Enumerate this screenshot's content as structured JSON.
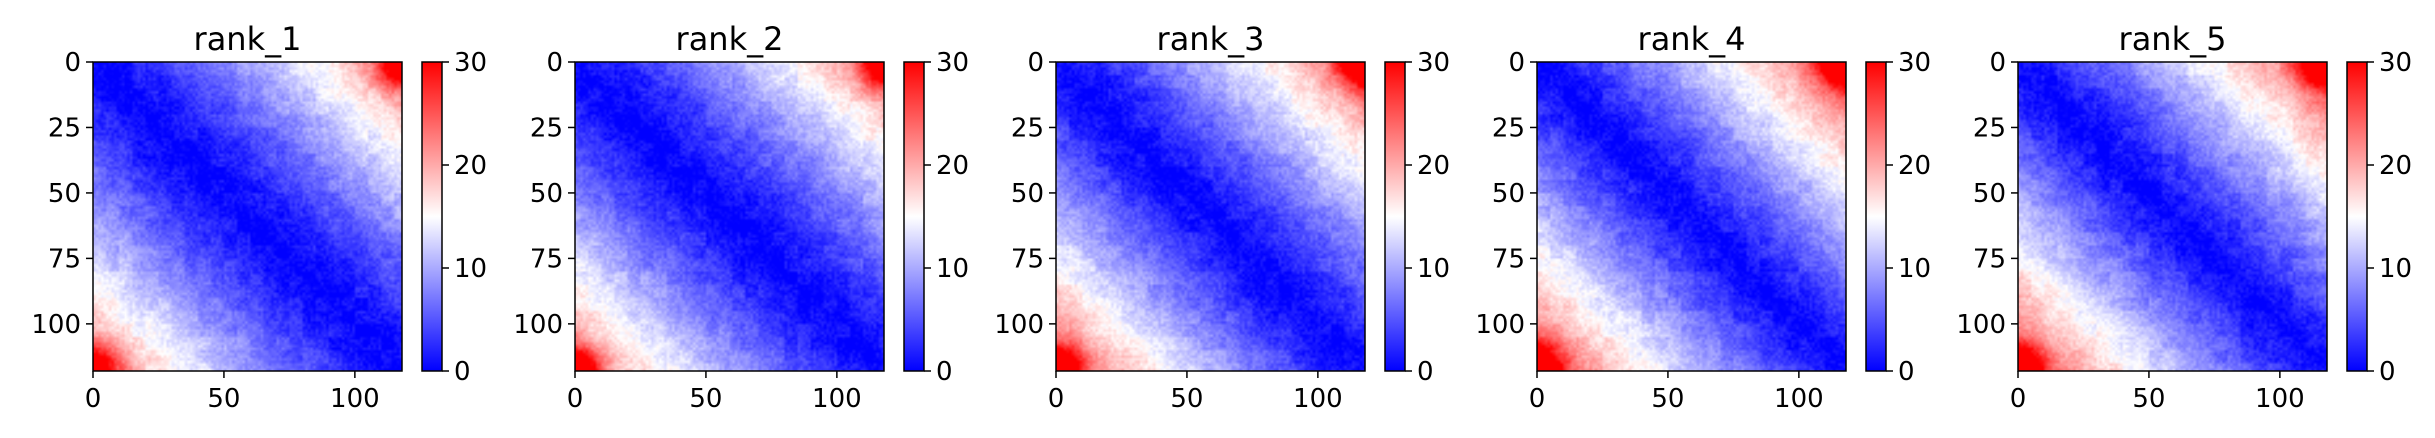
{
  "figure": {
    "colormap": "bwr",
    "color_low": "#0000ff",
    "color_mid": "#ffffff",
    "color_high": "#ff0000"
  },
  "chart_data": [
    {
      "type": "heatmap",
      "title": "rank_1",
      "n": 118,
      "xticks": [
        0,
        50,
        100
      ],
      "yticks": [
        0,
        25,
        50,
        75,
        100
      ],
      "xlim": [
        0,
        118
      ],
      "ylim": [
        118,
        0
      ],
      "colorbar": {
        "range": [
          0,
          30
        ],
        "ticks": [
          0,
          10,
          20,
          30
        ]
      },
      "pattern": {
        "diag_value": 0,
        "growth": 23,
        "power": 1.25,
        "corner_boost": 15
      }
    },
    {
      "type": "heatmap",
      "title": "rank_2",
      "n": 118,
      "xticks": [
        0,
        50,
        100
      ],
      "yticks": [
        0,
        25,
        50,
        75,
        100
      ],
      "xlim": [
        0,
        118
      ],
      "ylim": [
        118,
        0
      ],
      "colorbar": {
        "range": [
          0,
          30
        ],
        "ticks": [
          0,
          10,
          20,
          30
        ]
      },
      "pattern": {
        "diag_value": 0,
        "growth": 23,
        "power": 1.25,
        "corner_boost": 15
      }
    },
    {
      "type": "heatmap",
      "title": "rank_3",
      "n": 118,
      "xticks": [
        0,
        50,
        100
      ],
      "yticks": [
        0,
        25,
        50,
        75,
        100
      ],
      "xlim": [
        0,
        118
      ],
      "ylim": [
        118,
        0
      ],
      "colorbar": {
        "range": [
          0,
          30
        ],
        "ticks": [
          0,
          10,
          20,
          30
        ]
      },
      "pattern": {
        "diag_value": 0,
        "growth": 25,
        "power": 1.2,
        "corner_boost": 17
      }
    },
    {
      "type": "heatmap",
      "title": "rank_4",
      "n": 118,
      "xticks": [
        0,
        50,
        100
      ],
      "yticks": [
        0,
        25,
        50,
        75,
        100
      ],
      "xlim": [
        0,
        118
      ],
      "ylim": [
        118,
        0
      ],
      "colorbar": {
        "range": [
          0,
          30
        ],
        "ticks": [
          0,
          10,
          20,
          30
        ]
      },
      "pattern": {
        "diag_value": 0,
        "growth": 26,
        "power": 1.15,
        "corner_boost": 18
      }
    },
    {
      "type": "heatmap",
      "title": "rank_5",
      "n": 118,
      "xticks": [
        0,
        50,
        100
      ],
      "yticks": [
        0,
        25,
        50,
        75,
        100
      ],
      "xlim": [
        0,
        118
      ],
      "ylim": [
        118,
        0
      ],
      "colorbar": {
        "range": [
          0,
          30
        ],
        "ticks": [
          0,
          10,
          20,
          30
        ]
      },
      "pattern": {
        "diag_value": 0,
        "growth": 26,
        "power": 1.15,
        "corner_boost": 18
      }
    }
  ]
}
